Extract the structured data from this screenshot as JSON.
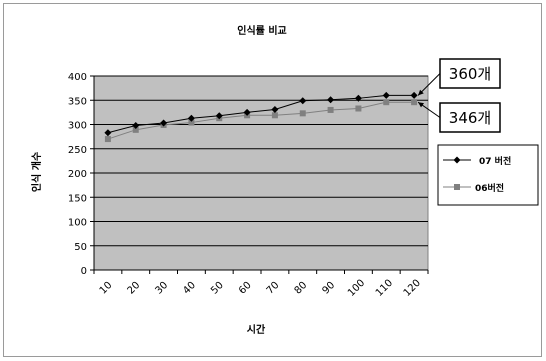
{
  "chart_data": {
    "type": "line",
    "title": "인식률 비교",
    "xlabel": "시간",
    "ylabel": "인식 개수",
    "categories": [
      "10",
      "20",
      "30",
      "40",
      "50",
      "60",
      "70",
      "80",
      "90",
      "100",
      "110",
      "120"
    ],
    "ylim": [
      0,
      400
    ],
    "yticks": [
      "0",
      "50",
      "100",
      "150",
      "200",
      "250",
      "300",
      "350",
      "400"
    ],
    "grid": "horizontal",
    "plot_background": "#c0c0c0",
    "legend_position": "right",
    "series": [
      {
        "name": "07 버전",
        "values": [
          283,
          298,
          303,
          313,
          318,
          325,
          331,
          349,
          351,
          354,
          360,
          360
        ],
        "color": "#000000",
        "marker": "diamond"
      },
      {
        "name": "06버전",
        "values": [
          270,
          289,
          299,
          304,
          313,
          319,
          319,
          323,
          330,
          333,
          346,
          346
        ],
        "color": "#808080",
        "marker": "square"
      }
    ],
    "annotations": [
      {
        "text": "360개",
        "series": 0,
        "point": 11
      },
      {
        "text": "346개",
        "series": 1,
        "point": 11
      }
    ]
  }
}
